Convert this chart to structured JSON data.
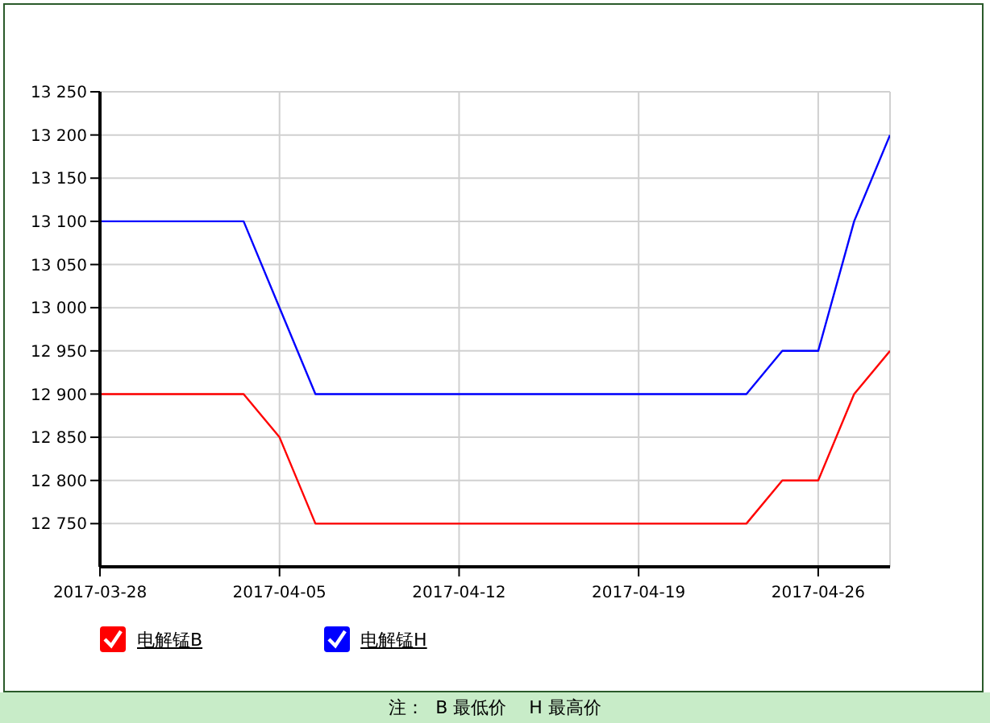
{
  "chart_data": {
    "type": "line",
    "categories": [
      "2017-03-28",
      null,
      null,
      null,
      null,
      "2017-04-05",
      null,
      null,
      null,
      null,
      "2017-04-12",
      null,
      null,
      null,
      null,
      "2017-04-19",
      null,
      null,
      null,
      null,
      "2017-04-26",
      null,
      null
    ],
    "series": [
      {
        "name": "电解锰B",
        "color": "#ff0000",
        "values": [
          12900,
          12900,
          12900,
          12900,
          12900,
          12850,
          12750,
          12750,
          12750,
          12750,
          12750,
          12750,
          12750,
          12750,
          12750,
          12750,
          12750,
          12750,
          12750,
          12800,
          12800,
          12900,
          12950
        ]
      },
      {
        "name": "电解锰H",
        "color": "#0000ff",
        "values": [
          13100,
          13100,
          13100,
          13100,
          13100,
          13000,
          12900,
          12900,
          12900,
          12900,
          12900,
          12900,
          12900,
          12900,
          12900,
          12900,
          12900,
          12900,
          12900,
          12950,
          12950,
          13100,
          13200
        ]
      }
    ],
    "ylim": [
      12700,
      13250
    ],
    "yticks": [
      {
        "value": 12750,
        "label": "12 750"
      },
      {
        "value": 12800,
        "label": "12 800"
      },
      {
        "value": 12850,
        "label": "12 850"
      },
      {
        "value": 12900,
        "label": "12 900"
      },
      {
        "value": 12950,
        "label": "12 950"
      },
      {
        "value": 13000,
        "label": "13 000"
      },
      {
        "value": 13050,
        "label": "13 050"
      },
      {
        "value": 13100,
        "label": "13 100"
      },
      {
        "value": 13150,
        "label": "13 150"
      },
      {
        "value": 13200,
        "label": "13 200"
      },
      {
        "value": 13250,
        "label": "13 250"
      }
    ],
    "grid": true,
    "legend": "bottom left",
    "marker": "none",
    "line_style": "solid",
    "annotations": [
      "注：  B 最低价    H 最高价"
    ]
  }
}
